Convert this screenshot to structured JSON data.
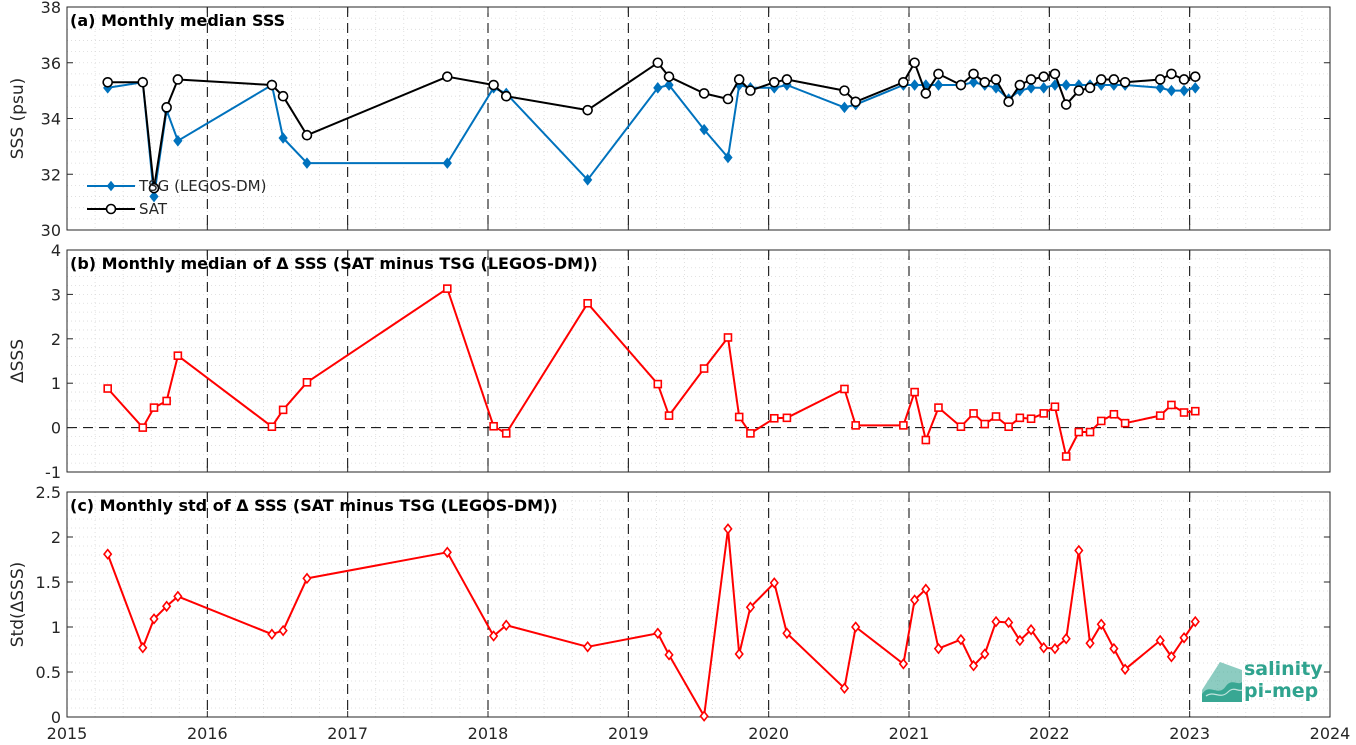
{
  "logo": {
    "line1": "salinity",
    "line2": "pi-mep",
    "color": "#2fa38e"
  },
  "chart_data": [
    {
      "type": "line",
      "title": "(a) Monthly median SSS",
      "ylabel": "SSS (psu)",
      "xlim": [
        2015,
        2024
      ],
      "ylim": [
        30,
        38
      ],
      "yticks": [
        30,
        32,
        34,
        36,
        38
      ],
      "legend_position": "bottom-left",
      "series": [
        {
          "name": "TSG (LEGOS-DM)",
          "color": "#0072bd",
          "marker": "diamond",
          "x": [
            2015.29,
            2015.54,
            2015.62,
            2015.71,
            2015.79,
            2016.46,
            2016.54,
            2016.71,
            2017.71,
            2018.04,
            2018.13,
            2018.71,
            2019.21,
            2019.29,
            2019.54,
            2019.71,
            2019.79,
            2019.87,
            2020.04,
            2020.13,
            2020.54,
            2020.62,
            2020.96,
            2021.04,
            2021.12,
            2021.21,
            2021.37,
            2021.46,
            2021.54,
            2021.62,
            2021.71,
            2021.79,
            2021.87,
            2021.96,
            2022.04,
            2022.12,
            2022.21,
            2022.29,
            2022.37,
            2022.46,
            2022.54,
            2022.79,
            2022.87,
            2022.96,
            2023.04
          ],
          "y": [
            35.1,
            35.3,
            31.2,
            34.3,
            33.2,
            35.2,
            33.3,
            32.4,
            32.4,
            35.1,
            34.9,
            31.8,
            35.1,
            35.2,
            33.6,
            32.6,
            35.2,
            35.1,
            35.1,
            35.2,
            34.4,
            34.5,
            35.2,
            35.2,
            35.2,
            35.2,
            35.2,
            35.3,
            35.2,
            35.1,
            34.7,
            35.0,
            35.1,
            35.1,
            35.2,
            35.2,
            35.2,
            35.2,
            35.2,
            35.2,
            35.2,
            35.1,
            35.0,
            35.0,
            35.1
          ]
        },
        {
          "name": "SAT",
          "color": "#000000",
          "marker": "circle",
          "x": [
            2015.29,
            2015.54,
            2015.62,
            2015.71,
            2015.79,
            2016.46,
            2016.54,
            2016.71,
            2017.71,
            2018.04,
            2018.13,
            2018.71,
            2019.21,
            2019.29,
            2019.54,
            2019.71,
            2019.79,
            2019.87,
            2020.04,
            2020.13,
            2020.54,
            2020.62,
            2020.96,
            2021.04,
            2021.12,
            2021.21,
            2021.37,
            2021.46,
            2021.54,
            2021.62,
            2021.71,
            2021.79,
            2021.87,
            2021.96,
            2022.04,
            2022.12,
            2022.21,
            2022.29,
            2022.37,
            2022.46,
            2022.54,
            2022.79,
            2022.87,
            2022.96,
            2023.04
          ],
          "y": [
            35.3,
            35.3,
            31.5,
            34.4,
            35.4,
            35.2,
            34.8,
            33.4,
            35.5,
            35.2,
            34.8,
            34.3,
            36.0,
            35.5,
            34.9,
            34.7,
            35.4,
            35.0,
            35.3,
            35.4,
            35.0,
            34.6,
            35.3,
            36.0,
            34.9,
            35.6,
            35.2,
            35.6,
            35.3,
            35.4,
            34.6,
            35.2,
            35.4,
            35.5,
            35.6,
            34.5,
            35.0,
            35.1,
            35.4,
            35.4,
            35.3,
            35.4,
            35.6,
            35.4,
            35.5
          ]
        }
      ]
    },
    {
      "type": "line",
      "title": "(b) Monthly median of Δ SSS (SAT minus TSG (LEGOS-DM))",
      "ylabel": "ΔSSS",
      "xlim": [
        2015,
        2024
      ],
      "ylim": [
        -1,
        4
      ],
      "yticks": [
        -1,
        0,
        1,
        2,
        3,
        4
      ],
      "zero_line": true,
      "series": [
        {
          "color": "#ff0000",
          "marker": "square",
          "x": [
            2015.29,
            2015.54,
            2015.62,
            2015.71,
            2015.79,
            2016.46,
            2016.54,
            2016.71,
            2017.71,
            2018.04,
            2018.13,
            2018.71,
            2019.21,
            2019.29,
            2019.54,
            2019.71,
            2019.79,
            2019.87,
            2020.04,
            2020.13,
            2020.54,
            2020.62,
            2020.96,
            2021.04,
            2021.12,
            2021.21,
            2021.37,
            2021.46,
            2021.54,
            2021.62,
            2021.71,
            2021.79,
            2021.87,
            2021.96,
            2022.04,
            2022.12,
            2022.21,
            2022.29,
            2022.37,
            2022.46,
            2022.54,
            2022.79,
            2022.87,
            2022.96,
            2023.04
          ],
          "y": [
            0.88,
            0.0,
            0.45,
            0.6,
            1.62,
            0.02,
            0.4,
            1.02,
            3.13,
            0.03,
            -0.13,
            2.8,
            0.98,
            0.27,
            1.33,
            2.03,
            0.24,
            -0.13,
            0.21,
            0.22,
            0.87,
            0.05,
            0.05,
            0.8,
            -0.28,
            0.45,
            0.02,
            0.32,
            0.08,
            0.25,
            0.02,
            0.22,
            0.2,
            0.32,
            0.47,
            -0.65,
            -0.1,
            -0.1,
            0.15,
            0.3,
            0.1,
            0.27,
            0.51,
            0.34,
            0.37
          ]
        }
      ]
    },
    {
      "type": "line",
      "title": "(c) Monthly std of Δ SSS (SAT minus TSG (LEGOS-DM))",
      "ylabel": "Std(ΔSSS)",
      "xlim": [
        2015,
        2024
      ],
      "ylim": [
        0,
        2.5
      ],
      "yticks": [
        0,
        0.5,
        1,
        1.5,
        2,
        2.5
      ],
      "xticks": [
        2015,
        2016,
        2017,
        2018,
        2019,
        2020,
        2021,
        2022,
        2023,
        2024
      ],
      "series": [
        {
          "color": "#ff0000",
          "marker": "diamond",
          "x": [
            2015.29,
            2015.54,
            2015.62,
            2015.71,
            2015.79,
            2016.46,
            2016.54,
            2016.71,
            2017.71,
            2018.04,
            2018.13,
            2018.71,
            2019.21,
            2019.29,
            2019.54,
            2019.71,
            2019.79,
            2019.87,
            2020.04,
            2020.13,
            2020.54,
            2020.62,
            2020.96,
            2021.04,
            2021.12,
            2021.21,
            2021.37,
            2021.46,
            2021.54,
            2021.62,
            2021.71,
            2021.79,
            2021.87,
            2021.96,
            2022.04,
            2022.12,
            2022.21,
            2022.29,
            2022.37,
            2022.46,
            2022.54,
            2022.79,
            2022.87,
            2022.96,
            2023.04
          ],
          "y": [
            1.81,
            0.77,
            1.09,
            1.23,
            1.34,
            0.92,
            0.96,
            1.54,
            1.83,
            0.9,
            1.02,
            0.78,
            0.93,
            0.69,
            0.01,
            2.09,
            0.7,
            1.22,
            1.49,
            0.93,
            0.32,
            1.0,
            0.59,
            1.3,
            1.42,
            0.76,
            0.86,
            0.57,
            0.7,
            1.06,
            1.05,
            0.85,
            0.97,
            0.77,
            0.76,
            0.87,
            1.85,
            0.82,
            1.03,
            0.76,
            0.53,
            0.85,
            0.67,
            0.88,
            1.06
          ]
        }
      ]
    }
  ]
}
